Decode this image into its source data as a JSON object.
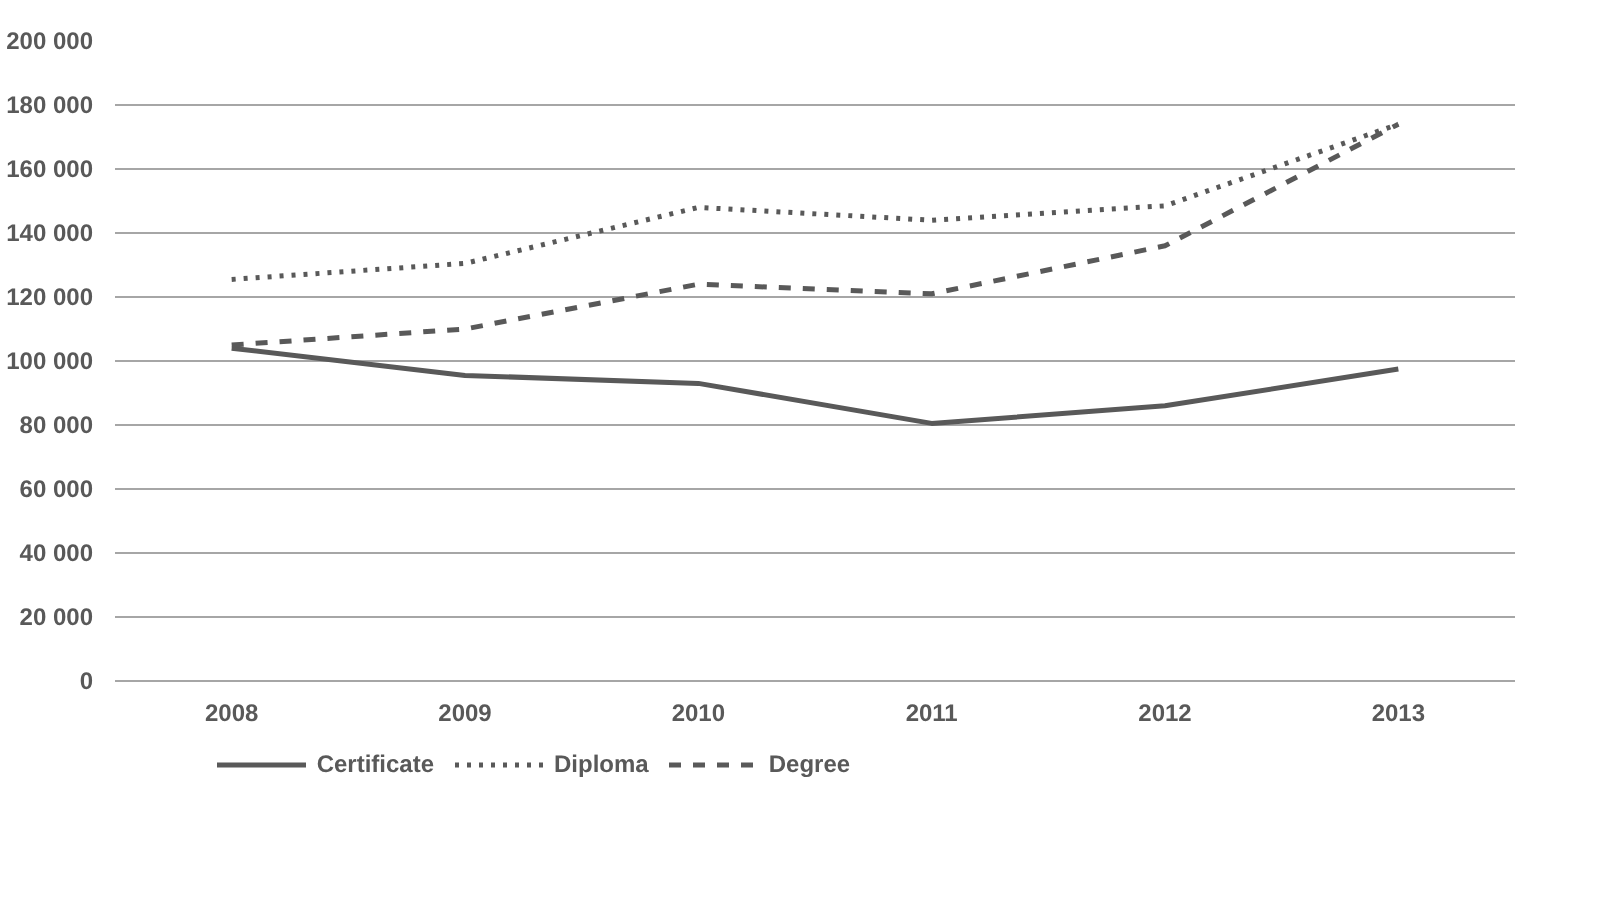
{
  "chart_data": {
    "type": "line",
    "categories": [
      "2008",
      "2009",
      "2010",
      "2011",
      "2012",
      "2013"
    ],
    "series": [
      {
        "name": "Certificate",
        "color": "#595959",
        "line_style": "solid",
        "values": [
          104000,
          95500,
          93000,
          80500,
          86000,
          97500
        ]
      },
      {
        "name": "Diploma",
        "color": "#595959",
        "line_style": "dotted",
        "values": [
          125500,
          130500,
          148000,
          144000,
          148500,
          174000
        ]
      },
      {
        "name": "Degree",
        "color": "#595959",
        "line_style": "dashed",
        "values": [
          105000,
          110000,
          124000,
          121000,
          136000,
          174000
        ]
      }
    ],
    "ylim": [
      0,
      200000
    ],
    "yticks": [
      0,
      {
        "value": 20000,
        "label": "20 000"
      },
      {
        "value": 40000,
        "label": "40 000"
      },
      {
        "value": 60000,
        "label": "60 000"
      },
      {
        "value": 80000,
        "label": "80 000"
      },
      {
        "value": 100000,
        "label": "100 000"
      },
      {
        "value": 120000,
        "label": "120 000"
      },
      {
        "value": 140000,
        "label": "140 000"
      },
      {
        "value": 160000,
        "label": "160 000"
      },
      {
        "value": 180000,
        "label": "180 000"
      },
      {
        "value": 200000,
        "label": "200 000"
      }
    ],
    "grid": "y",
    "legend": "bottom left",
    "marker": "none"
  }
}
